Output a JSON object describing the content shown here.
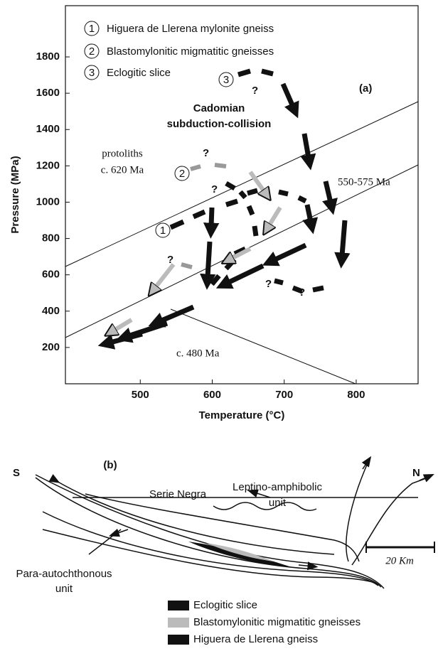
{
  "panel_a": {
    "label": "(a)",
    "xlabel": "Temperature (°C)",
    "ylabel": "Pressure (MPa)",
    "xlim": [
      396,
      886
    ],
    "ylim": [
      0,
      2082
    ],
    "xticks": [
      500,
      600,
      700,
      800
    ],
    "yticks": [
      200,
      400,
      600,
      800,
      1000,
      1200,
      1400,
      1600,
      1800
    ],
    "legend": [
      {
        "number": "1",
        "text": "Higuera de Llerena mylonite gneiss"
      },
      {
        "number": "2",
        "text": "Blastomylonitic migmatitic gneisses"
      },
      {
        "number": "3",
        "text": "Eclogitic slice"
      }
    ],
    "collision": [
      "Cadomian",
      "subduction-collision"
    ],
    "protoliths": [
      "protoliths",
      "c. 620 Ma"
    ],
    "age_upper": "550-575 Ma",
    "age_lower": "c. 480 Ma",
    "unknown": "?"
  },
  "panel_b": {
    "label": "(b)",
    "south": "S",
    "north": "N",
    "serie_negra": "Serie Negra",
    "leptino": [
      "Leptino-amphibolic",
      "unit"
    ],
    "para": [
      "Para-autochthonous",
      "unit"
    ],
    "scale": "20 Km",
    "legend": [
      {
        "text": "Eclogitic slice",
        "color": "#111111"
      },
      {
        "text": "Blastomylonitic migmatitic gneisses",
        "color": "#bbbbbb"
      },
      {
        "text": "Higuera de Llerena gneiss",
        "color": "#111111"
      }
    ]
  }
}
